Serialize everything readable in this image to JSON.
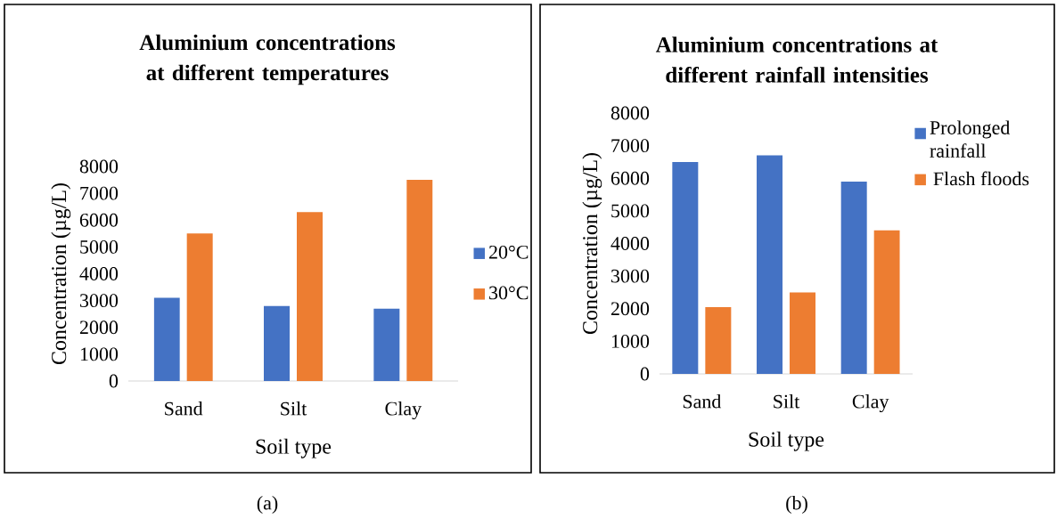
{
  "chart_data": [
    {
      "type": "bar",
      "title": "Aluminium concentrations at different temperatures",
      "xlabel": "Soil type",
      "ylabel": "Concentration (µg/L)",
      "categories": [
        "Sand",
        "Silt",
        "Clay"
      ],
      "series": [
        {
          "name": "20°C",
          "color": "#4472c4",
          "values": [
            3100,
            2800,
            2700
          ]
        },
        {
          "name": "30°C",
          "color": "#ed7d31",
          "values": [
            5500,
            6300,
            7500
          ]
        }
      ],
      "ylim": [
        0,
        8000
      ],
      "yticks": [
        0,
        1000,
        2000,
        3000,
        4000,
        5000,
        6000,
        7000,
        8000
      ],
      "legend": "right",
      "annotations": [
        "(a)"
      ]
    },
    {
      "type": "bar",
      "title": "Aluminium concentrations at different rainfall intensities",
      "xlabel": "Soil type",
      "ylabel": "Concentration (µg/L)",
      "categories": [
        "Sand",
        "Silt",
        "Clay"
      ],
      "series": [
        {
          "name": "Prolonged rainfall",
          "color": "#4472c4",
          "values": [
            6500,
            6700,
            5900
          ]
        },
        {
          "name": "Flash floods",
          "color": "#ed7d31",
          "values": [
            2050,
            2500,
            4400
          ]
        }
      ],
      "ylim": [
        0,
        8000
      ],
      "yticks": [
        0,
        1000,
        2000,
        3000,
        4000,
        5000,
        6000,
        7000,
        8000
      ],
      "legend": "top right",
      "annotations": [
        "(b)"
      ]
    }
  ]
}
